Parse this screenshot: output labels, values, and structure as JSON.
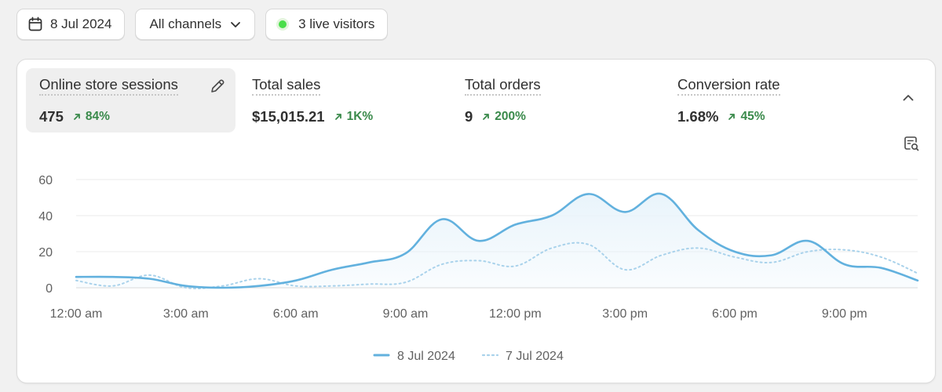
{
  "toolbar": {
    "date_label": "8 Jul 2024",
    "channels_label": "All channels",
    "live_label": "3 live visitors"
  },
  "metrics": [
    {
      "label": "Online store sessions",
      "value": "475",
      "change": "84%"
    },
    {
      "label": "Total sales",
      "value": "$15,015.21",
      "change": "1K%"
    },
    {
      "label": "Total orders",
      "value": "9",
      "change": "200%"
    },
    {
      "label": "Conversion rate",
      "value": "1.68%",
      "change": "45%"
    }
  ],
  "icons": {
    "date": "calendar-icon",
    "channels": "chevron-down-icon",
    "live": "live-dot-icon",
    "edit": "pencil-icon",
    "collapse": "chevron-up-icon",
    "analyze": "chart-search-icon",
    "trend": "arrow-up-right-icon"
  },
  "colors": {
    "primary_series": "#62b1de",
    "comparison_series": "#a9d2eb",
    "positive_change": "#3a8a4b",
    "live_dot": "#4ade4a",
    "area_fill": "#e9f4fb"
  },
  "chart_data": {
    "type": "line",
    "ylim": [
      0,
      60
    ],
    "yticks": [
      "0",
      "20",
      "40",
      "60"
    ],
    "xtick_labels": [
      "12:00 am",
      "3:00 am",
      "6:00 am",
      "9:00 am",
      "12:00 pm",
      "3:00 pm",
      "6:00 pm",
      "9:00 pm"
    ],
    "xtick_hours": [
      0,
      3,
      6,
      9,
      12,
      15,
      18,
      21
    ],
    "x_hours": [
      0,
      1,
      2,
      3,
      4,
      5,
      6,
      7,
      8,
      9,
      10,
      11,
      12,
      13,
      14,
      15,
      16,
      17,
      18,
      19,
      20,
      21,
      22,
      23
    ],
    "grid": true,
    "legend_position": "bottom-center",
    "series": [
      {
        "name": "8 Jul 2024",
        "style": "solid",
        "values": [
          6,
          6,
          5,
          1,
          0,
          1,
          4,
          10,
          14,
          19,
          38,
          26,
          35,
          40,
          52,
          42,
          52,
          32,
          20,
          18,
          26,
          13,
          11,
          4
        ]
      },
      {
        "name": "7 Jul 2024",
        "style": "dotted",
        "values": [
          4,
          1,
          7,
          0,
          1,
          5,
          1,
          1,
          2,
          3,
          13,
          15,
          12,
          22,
          24,
          10,
          18,
          22,
          17,
          14,
          20,
          21,
          17,
          8
        ]
      }
    ]
  }
}
